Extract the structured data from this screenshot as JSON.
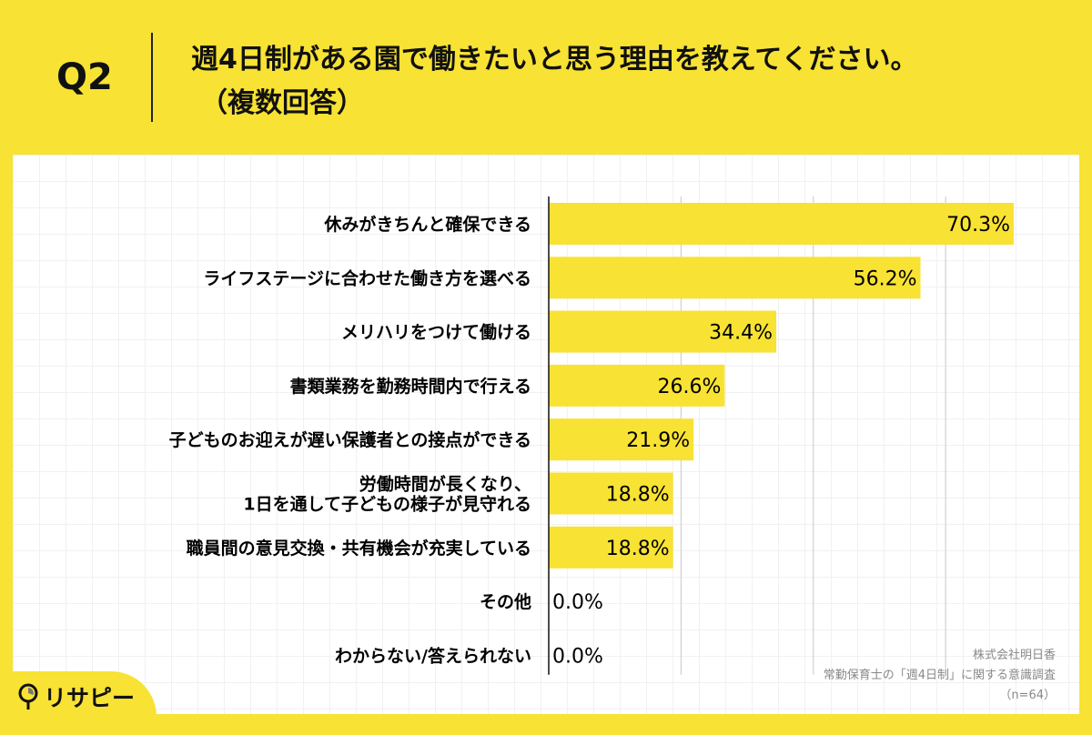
{
  "header": {
    "question_number": "Q2",
    "title": "週4日制がある園で働きたいと思う理由を教えてください。",
    "subtitle": "（複数回答）"
  },
  "footnote": {
    "company": "株式会社明日香",
    "survey": "常勤保育士の「週4日制」に関する意識調査",
    "sample": "（n=64）"
  },
  "logo": {
    "text": "リサピー"
  },
  "colors": {
    "bar": "#f8e233",
    "background": "#f8e233",
    "panel": "#ffffff"
  },
  "chart_data": {
    "type": "bar",
    "orientation": "horizontal",
    "categories": [
      "休みがきちんと確保できる",
      "ライフステージに合わせた働き方を選べる",
      "メリハリをつけて働ける",
      "書類業務を勤務時間内で行える",
      "子どものお迎えが遅い保護者との接点ができる",
      "労働時間が長くなり、\n1日を通して子どもの様子が見守れる",
      "職員間の意見交換・共有機会が充実している",
      "その他",
      "わからない/答えられない"
    ],
    "values": [
      70.3,
      56.2,
      34.4,
      26.6,
      21.9,
      18.8,
      18.8,
      0.0,
      0.0
    ],
    "value_labels": [
      "70.3%",
      "56.2%",
      "34.4%",
      "26.6%",
      "21.9%",
      "18.8%",
      "18.8%",
      "0.0%",
      "0.0%"
    ],
    "xlim": [
      0,
      80
    ],
    "gridlines_at": [
      20,
      40,
      60
    ],
    "grid": true,
    "legend": "none"
  }
}
